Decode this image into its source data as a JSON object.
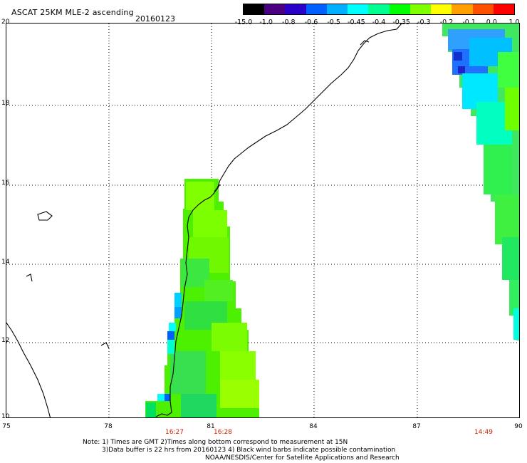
{
  "title": "ASCAT 25KM MLE-2 ascending",
  "date": "20160123",
  "colorbar": {
    "labels": [
      "-15.0",
      "-1.0",
      "-0.8",
      "-0.6",
      "-0.5",
      "-0.45",
      "-0.4",
      "-0.35",
      "-0.3",
      "-0.2",
      "-0.1",
      "0.0",
      "1.0"
    ],
    "colors": [
      "#000000",
      "#4a0080",
      "#2a00c8",
      "#0060ff",
      "#00b0ff",
      "#00ffff",
      "#00ff90",
      "#00ff00",
      "#80ff00",
      "#ffff00",
      "#ffa000",
      "#ff5000",
      "#ff0000"
    ]
  },
  "map": {
    "lat_labels": [
      "20",
      "18",
      "16",
      "14",
      "12",
      "10"
    ],
    "lon_labels": [
      "75",
      "78",
      "81",
      "84",
      "87",
      "90"
    ],
    "lat_range": [
      10,
      20
    ],
    "lon_range": [
      75,
      90
    ],
    "grid": "dotted"
  },
  "pass_times": [
    "16:27",
    "16:28",
    "14:49"
  ],
  "notes": [
    "Note: 1) Times are GMT 2)Times along bottom correspond to measurement at 15N",
    "3)Data buffer is 22 hrs from 20160123 4) Black wind barbs indicate possible contamination",
    "NOAA/NESDIS/Center for Satellite Applications and Research"
  ]
}
